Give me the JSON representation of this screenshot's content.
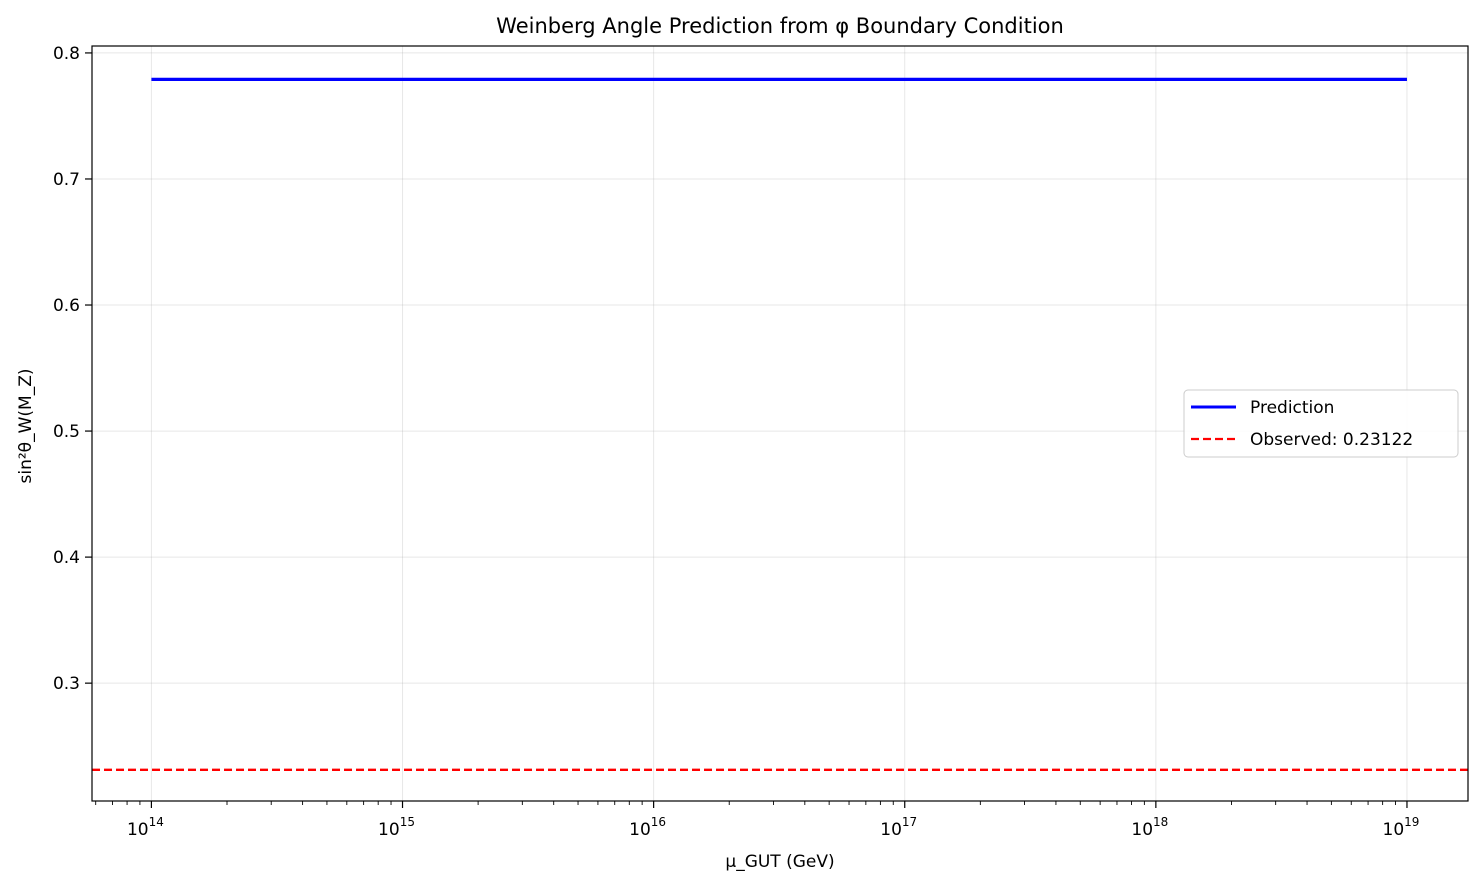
{
  "chart_data": {
    "type": "line",
    "title": "Weinberg Angle Prediction from φ Boundary Condition",
    "xlabel": "μ_GUT (GeV)",
    "ylabel": "sin²θ_W(M_Z)",
    "xscale": "log",
    "xlim": [
      58000000000000.0,
      1.75e+19
    ],
    "ylim": [
      0.2065,
      0.8055
    ],
    "x_ticks": [
      {
        "value": 100000000000000.0,
        "base": "10",
        "exp": "14"
      },
      {
        "value": 1000000000000000.0,
        "base": "10",
        "exp": "15"
      },
      {
        "value": 1e+16,
        "base": "10",
        "exp": "16"
      },
      {
        "value": 1e+17,
        "base": "10",
        "exp": "17"
      },
      {
        "value": 1e+18,
        "base": "10",
        "exp": "18"
      },
      {
        "value": 1e+19,
        "base": "10",
        "exp": "19"
      }
    ],
    "y_ticks": [
      {
        "value": 0.3,
        "label": "0.3"
      },
      {
        "value": 0.4,
        "label": "0.4"
      },
      {
        "value": 0.5,
        "label": "0.5"
      },
      {
        "value": 0.6,
        "label": "0.6"
      },
      {
        "value": 0.7,
        "label": "0.7"
      },
      {
        "value": 0.8,
        "label": "0.8"
      }
    ],
    "grid": true,
    "legend_position": "center-right",
    "series": [
      {
        "name": "Prediction",
        "color": "#0000ff",
        "style": "solid",
        "x": [
          100000000000000.0,
          1e+19
        ],
        "y": [
          0.779,
          0.779
        ]
      },
      {
        "name": "Observed: 0.23122",
        "color": "#ff0000",
        "style": "dashed",
        "hline": 0.23122
      }
    ]
  }
}
